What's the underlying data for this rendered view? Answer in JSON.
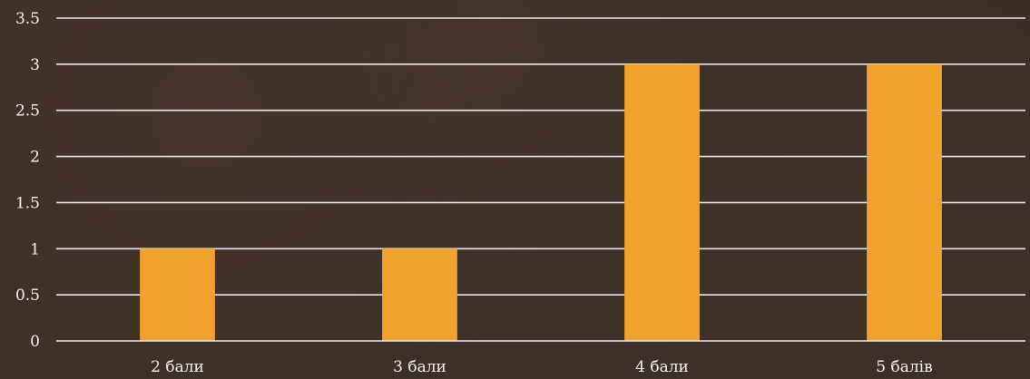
{
  "chart_data": {
    "type": "bar",
    "categories": [
      "2 бали",
      "3 бали",
      "4 бали",
      "5 балів"
    ],
    "values": [
      1,
      1,
      3,
      3
    ],
    "title": "",
    "xlabel": "",
    "ylabel": "",
    "ylim": [
      0,
      3.5
    ],
    "yticks": [
      "0",
      "0.5",
      "1",
      "1.5",
      "2",
      "2.5",
      "3",
      "3.5"
    ],
    "grid": true,
    "legend": "none",
    "colors": {
      "bar": "#f0a22e",
      "grid": "#e8e8e8",
      "text": "#f2f2f2",
      "background": "#3d2f27"
    }
  }
}
